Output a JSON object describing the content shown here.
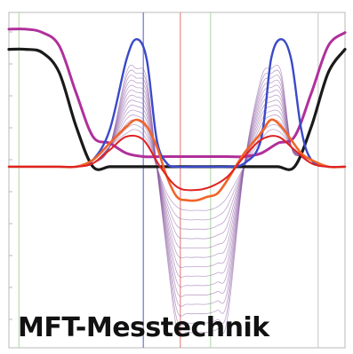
{
  "caption": "MFT-Messtechnik",
  "colors": {
    "frame": "#b8b8b8",
    "grid_v": "#d8d8d8",
    "marker_blue": "#6a74d8",
    "marker_red": "#e88a8a",
    "marker_green": "#b8dcb0",
    "marker_gray": "#cfcfcf",
    "curve_black": "#1a1a1a",
    "curve_magenta": "#b0309a",
    "curve_blue": "#3a4ac8",
    "curve_orange": "#f06428",
    "curve_red": "#e02020",
    "curve_family": "#8a5aa0"
  },
  "chart_data": {
    "type": "line",
    "title": "",
    "xlabel": "",
    "ylabel": "",
    "grid": false,
    "legend": "none",
    "xlim": [
      0,
      100
    ],
    "ylim": [
      -6,
      4
    ],
    "vertical_markers": [
      {
        "x": 3,
        "color": "marker_green"
      },
      {
        "x": 40,
        "color": "marker_blue"
      },
      {
        "x": 51,
        "color": "marker_red"
      },
      {
        "x": 60,
        "color": "marker_green"
      },
      {
        "x": 92,
        "color": "marker_gray"
      }
    ],
    "series": [
      {
        "color": "curve_black",
        "width": 3.2,
        "x": [
          0,
          5,
          10,
          15,
          20,
          25,
          30,
          35,
          40,
          45,
          50,
          55,
          60,
          65,
          70,
          75,
          80,
          85,
          90,
          95,
          100
        ],
        "values": [
          2.9,
          2.9,
          2.8,
          2.2,
          0.6,
          -0.6,
          -0.6,
          -0.6,
          -0.6,
          -0.6,
          -0.6,
          -0.6,
          -0.6,
          -0.6,
          -0.6,
          -0.6,
          -0.6,
          -0.6,
          0.6,
          2.2,
          2.9
        ]
      },
      {
        "color": "curve_magenta",
        "width": 3.0,
        "x": [
          0,
          5,
          10,
          15,
          20,
          25,
          30,
          35,
          40,
          45,
          50,
          55,
          60,
          65,
          70,
          75,
          80,
          85,
          90,
          95,
          100
        ],
        "values": [
          3.5,
          3.5,
          3.4,
          3.0,
          1.6,
          0.3,
          0.1,
          -0.2,
          -0.3,
          -0.3,
          -0.3,
          -0.3,
          -0.3,
          -0.3,
          -0.3,
          -0.2,
          0.1,
          0.3,
          1.6,
          3.0,
          3.4
        ]
      },
      {
        "color": "curve_blue",
        "width": 2.4,
        "x": [
          0,
          5,
          10,
          15,
          20,
          25,
          30,
          35,
          38,
          41,
          44,
          47,
          50,
          55,
          60,
          65,
          70,
          75,
          78,
          81,
          84,
          87,
          90,
          95,
          100
        ],
        "values": [
          -0.6,
          -0.6,
          -0.6,
          -0.6,
          -0.6,
          -0.4,
          0.5,
          2.6,
          3.2,
          2.6,
          0.2,
          -0.5,
          -0.6,
          -0.6,
          -0.6,
          -0.6,
          -0.5,
          0.2,
          2.6,
          3.2,
          2.6,
          0.5,
          -0.4,
          -0.6,
          -0.6
        ]
      },
      {
        "color": "curve_orange",
        "width": 2.6,
        "x": [
          0,
          5,
          10,
          15,
          20,
          25,
          30,
          35,
          38,
          41,
          44,
          47,
          50,
          53,
          56,
          59,
          62,
          65,
          70,
          75,
          78,
          81,
          84,
          87,
          90,
          95,
          100
        ],
        "values": [
          -0.6,
          -0.6,
          -0.6,
          -0.6,
          -0.6,
          -0.4,
          0.1,
          0.6,
          0.8,
          0.6,
          0.0,
          -0.9,
          -1.5,
          -1.6,
          -1.6,
          -1.5,
          -1.4,
          -1.0,
          -0.2,
          0.4,
          0.8,
          0.6,
          0.2,
          -0.2,
          -0.4,
          -0.6,
          -0.6
        ]
      },
      {
        "color": "curve_red",
        "width": 2.0,
        "x": [
          0,
          5,
          10,
          15,
          20,
          25,
          30,
          35,
          40,
          45,
          50,
          55,
          60,
          65,
          70,
          75,
          80,
          85,
          90,
          95,
          100
        ],
        "values": [
          -0.6,
          -0.6,
          -0.6,
          -0.6,
          -0.6,
          -0.5,
          -0.1,
          0.3,
          0.2,
          -0.6,
          -1.2,
          -1.3,
          -1.2,
          -0.9,
          -0.3,
          0.2,
          0.3,
          -0.1,
          -0.5,
          -0.6,
          -0.6
        ]
      }
    ],
    "family": {
      "color": "curve_family",
      "count": 14,
      "x": [
        0,
        10,
        20,
        25,
        30,
        35,
        38,
        41,
        44,
        47,
        50,
        53,
        56,
        59,
        62,
        65,
        70,
        75,
        78,
        81,
        84,
        87,
        90,
        95,
        100
      ],
      "base": [
        -0.6,
        -0.6,
        -0.6,
        -0.5,
        0.0,
        0.4,
        0.5,
        0.2,
        -0.6,
        -1.4,
        -1.8,
        -1.9,
        -1.9,
        -1.9,
        -1.8,
        -1.5,
        -0.6,
        0.2,
        0.5,
        0.4,
        0.0,
        -0.3,
        -0.5,
        -0.6,
        -0.6
      ],
      "depth_step": 0.28,
      "peak_step": 0.14
    }
  }
}
